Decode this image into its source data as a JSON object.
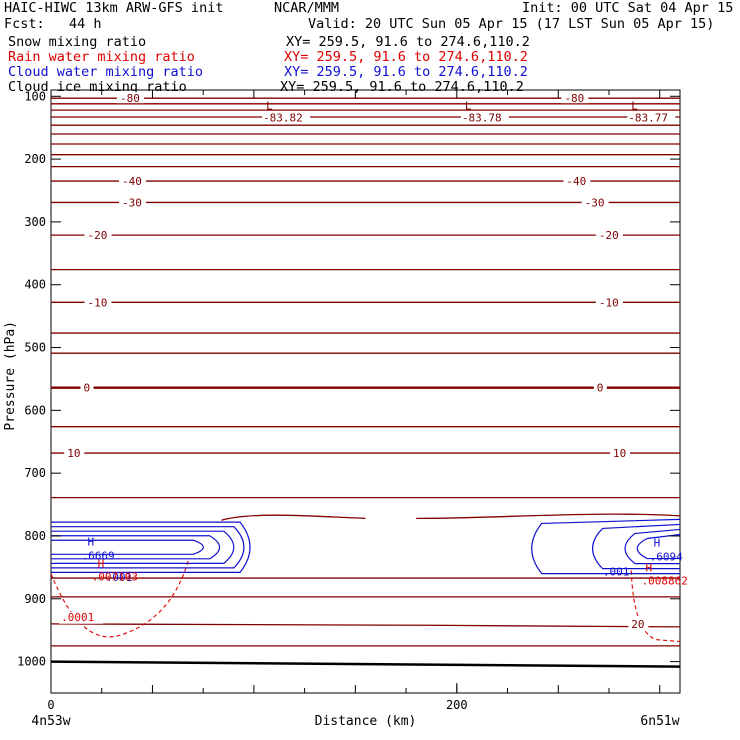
{
  "header": {
    "title_left": "HAIC-HIWC 13km ARW-GFS init",
    "org": "NCAR/MMM",
    "init": "Init: 00 UTC Sat 04 Apr 15",
    "fcst": "Fcst:   44 h",
    "valid": "Valid: 20 UTC Sun 05 Apr 15 (17 LST Sun 05 Apr 15)",
    "fields": [
      {
        "name": "Snow mixing ratio",
        "xy": "XY= 259.5, 91.6 to 274.6,110.2",
        "color": "#000000"
      },
      {
        "name": "Rain water mixing ratio",
        "xy": "XY= 259.5, 91.6 to 274.6,110.2",
        "color": "#e00000"
      },
      {
        "name": "Cloud water mixing ratio",
        "xy": "XY= 259.5, 91.6 to 274.6,110.2",
        "color": "#1010d0"
      },
      {
        "name": "Cloud ice mixing ratio",
        "xy": "XY= 259.5, 91.6 to 274.6,110.2",
        "color": "#000000"
      }
    ]
  },
  "chart_data": {
    "type": "line",
    "xlabel": "Distance (km)",
    "ylabel": "Pressure (hPa)",
    "xlim": [
      0,
      310
    ],
    "ylim": [
      1050,
      90
    ],
    "x_ticks": [
      0,
      200
    ],
    "y_ticks": [
      100,
      200,
      300,
      400,
      500,
      600,
      700,
      800,
      900,
      1000
    ],
    "endpoint_labels": {
      "left": "4n53w",
      "right": "6n51w"
    },
    "colors": {
      "temperature": "#800000",
      "rain": "#e00000",
      "cloud": "#1010d0",
      "ground": "#000000"
    },
    "isotherms": [
      {
        "p": 103,
        "label": "-80",
        "label_x": [
          34,
          253
        ]
      },
      {
        "p": 112,
        "label": ""
      },
      {
        "p": 122,
        "label": ""
      },
      {
        "p": 133,
        "label": ""
      },
      {
        "p": 146,
        "label": ""
      },
      {
        "p": 160,
        "label": ""
      },
      {
        "p": 176,
        "label": ""
      },
      {
        "p": 193,
        "label": ""
      },
      {
        "p": 212,
        "label": ""
      },
      {
        "p": 235,
        "label": "-40",
        "label_x": [
          35,
          254
        ]
      },
      {
        "p": 269,
        "label": "-30",
        "label_x": [
          35,
          263
        ]
      },
      {
        "p": 321,
        "label": "-20",
        "label_x": [
          18,
          270
        ]
      },
      {
        "p": 376,
        "label": ""
      },
      {
        "p": 428,
        "label": "-10",
        "label_x": [
          18,
          270
        ]
      },
      {
        "p": 477,
        "label": ""
      },
      {
        "p": 509,
        "label": ""
      },
      {
        "p": 564,
        "label": "0",
        "label_x": [
          16,
          269
        ],
        "bold": true
      },
      {
        "p": 626,
        "label": ""
      },
      {
        "p": 668,
        "label": "10",
        "label_x": [
          8,
          277
        ]
      },
      {
        "p": 739,
        "label": ""
      },
      {
        "p": 867,
        "label": ""
      },
      {
        "p": 897,
        "label": ""
      },
      {
        "p": 940,
        "label": "20",
        "label_x": [
          286
        ],
        "tilt": 3
      },
      {
        "p": 975,
        "label": ""
      }
    ],
    "lows": [
      {
        "x": 106,
        "p": 92,
        "value": "-83.82"
      },
      {
        "x": 204,
        "p": 92,
        "value": "-83.78"
      },
      {
        "x": 286,
        "p": 92,
        "value": "-83.77"
      }
    ],
    "cloud_water": [
      {
        "side": "left",
        "max_label": ".6669",
        "max_x": 17,
        "max_p": 818,
        "min_label": ".001"
      },
      {
        "side": "right",
        "max_label": ".6094",
        "max_x": 296,
        "max_p": 820,
        "min_label": ".001"
      }
    ],
    "rain_water": [
      {
        "side": "left",
        "max_label": ".007103",
        "max_x": 23,
        "max_p": 853,
        "contour_label": ".0001"
      },
      {
        "side": "right",
        "max_label": ".008862",
        "max_x": 293,
        "max_p": 860
      }
    ]
  }
}
